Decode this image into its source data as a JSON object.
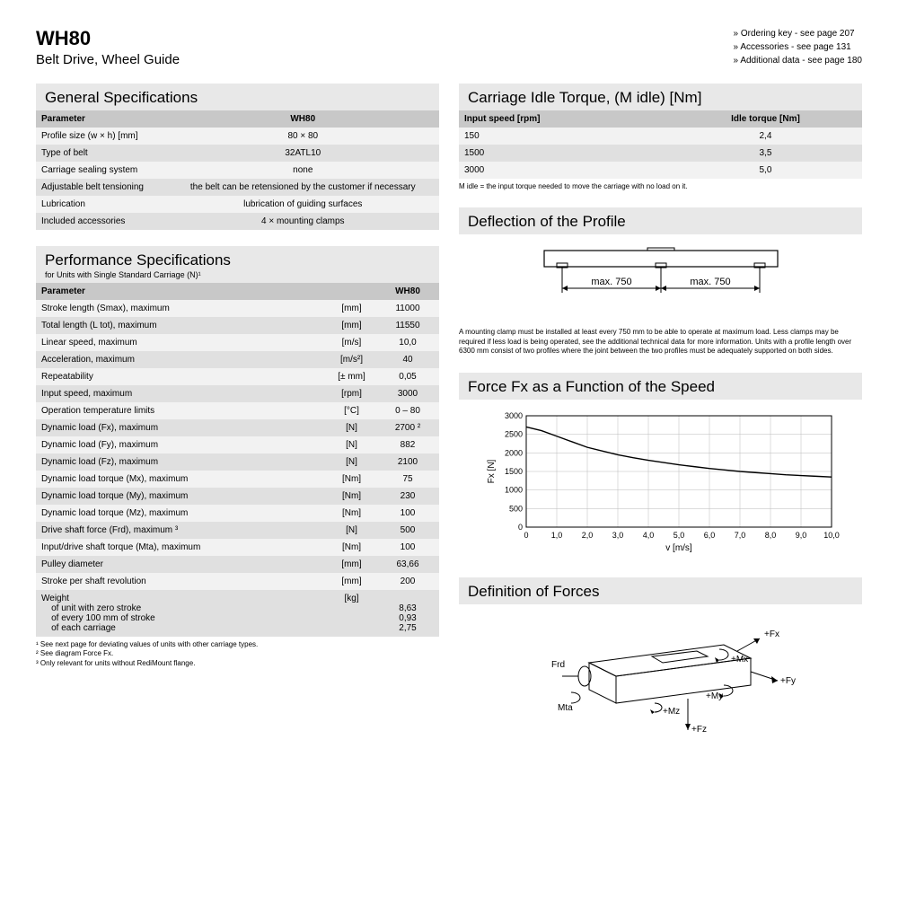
{
  "header": {
    "title": "WH80",
    "subtitle": "Belt Drive, Wheel Guide",
    "links": [
      "Ordering key - see page 207",
      "Accessories - see page 131",
      "Additional data - see page 180"
    ]
  },
  "general": {
    "title": "General Specifications",
    "hParam": "Parameter",
    "hVal": "WH80",
    "rows": [
      [
        "Profile size (w × h) [mm]",
        "80 × 80"
      ],
      [
        "Type of belt",
        "32ATL10"
      ],
      [
        "Carriage sealing system",
        "none"
      ],
      [
        "Adjustable belt tensioning",
        "the belt can be retensioned by the customer if necessary"
      ],
      [
        "Lubrication",
        "lubrication of guiding surfaces"
      ],
      [
        "Included accessories",
        "4 × mounting clamps"
      ]
    ]
  },
  "perf": {
    "title": "Performance Specifications",
    "subtitle": "for Units with Single Standard Carriage (N)¹",
    "hParam": "Parameter",
    "hVal": "WH80",
    "rows": [
      [
        "Stroke length (Smax), maximum",
        "[mm]",
        "11000"
      ],
      [
        "Total length (L tot), maximum",
        "[mm]",
        "11550"
      ],
      [
        "Linear speed, maximum",
        "[m/s]",
        "10,0"
      ],
      [
        "Acceleration, maximum",
        "[m/s²]",
        "40"
      ],
      [
        "Repeatability",
        "[± mm]",
        "0,05"
      ],
      [
        "Input speed, maximum",
        "[rpm]",
        "3000"
      ],
      [
        "Operation temperature limits",
        "[°C]",
        "0 – 80"
      ],
      [
        "Dynamic load (Fx), maximum",
        "[N]",
        "2700 ²"
      ],
      [
        "Dynamic load (Fy), maximum",
        "[N]",
        "882"
      ],
      [
        "Dynamic load (Fz), maximum",
        "[N]",
        "2100"
      ],
      [
        "Dynamic load torque (Mx), maximum",
        "[Nm]",
        "75"
      ],
      [
        "Dynamic load torque (My), maximum",
        "[Nm]",
        "230"
      ],
      [
        "Dynamic load torque (Mz), maximum",
        "[Nm]",
        "100"
      ],
      [
        "Drive shaft force (Frd), maximum ³",
        "[N]",
        "500"
      ],
      [
        "Input/drive shaft torque (Mta), maximum",
        "[Nm]",
        "100"
      ],
      [
        "Pulley diameter",
        "[mm]",
        "63,66"
      ],
      [
        "Stroke per shaft revolution",
        "[mm]",
        "200"
      ]
    ],
    "weight": {
      "label": "Weight",
      "unit": "[kg]",
      "sub": [
        [
          "of unit with zero stroke",
          "8,63"
        ],
        [
          "of every 100 mm of stroke",
          "0,93"
        ],
        [
          "of each carriage",
          "2,75"
        ]
      ]
    },
    "footnotes": [
      "¹ See next page for deviating values of units with other carriage types.",
      "² See diagram Force Fx.",
      "³ Only relevant for units without RediMount flange."
    ]
  },
  "idle": {
    "title": "Carriage Idle Torque, (M idle) [Nm]",
    "h1": "Input speed [rpm]",
    "h2": "Idle torque [Nm]",
    "rows": [
      [
        "150",
        "2,4"
      ],
      [
        "1500",
        "3,5"
      ],
      [
        "3000",
        "5,0"
      ]
    ],
    "note": "M idle = the input torque needed to move the carriage with no load on it."
  },
  "deflection": {
    "title": "Deflection of the Profile",
    "dim": "max. 750",
    "note": "A mounting clamp must be installed at least every 750 mm to be able to operate at maximum load. Less clamps may be required if less load is being operated, see the additional technical data for more information. Units with a profile length over 6300 mm consist of two profiles where the joint between the two profiles must be adequately supported on both sides."
  },
  "chart": {
    "title": "Force Fx as a Function of the Speed",
    "ylabel": "Fx [N]",
    "xlabel": "v [m/s]",
    "xlim": [
      0,
      10
    ],
    "ylim": [
      0,
      3000
    ],
    "ytick_step": 500,
    "xtick_step": 1,
    "xticks": [
      "0",
      "1,0",
      "2,0",
      "3,0",
      "4,0",
      "5,0",
      "6,0",
      "7,0",
      "8,0",
      "9,0",
      "10,0"
    ],
    "yticks": [
      "0",
      "500",
      "1000",
      "1500",
      "2000",
      "2500",
      "3000"
    ],
    "line_color": "#000000",
    "grid_color": "#bbbbbb",
    "background_color": "#ffffff",
    "data": [
      [
        0,
        2700
      ],
      [
        0.5,
        2600
      ],
      [
        1,
        2450
      ],
      [
        1.5,
        2300
      ],
      [
        2,
        2150
      ],
      [
        2.5,
        2050
      ],
      [
        3,
        1950
      ],
      [
        3.5,
        1870
      ],
      [
        4,
        1800
      ],
      [
        4.5,
        1740
      ],
      [
        5,
        1680
      ],
      [
        5.5,
        1630
      ],
      [
        6,
        1580
      ],
      [
        6.5,
        1540
      ],
      [
        7,
        1500
      ],
      [
        7.5,
        1470
      ],
      [
        8,
        1440
      ],
      [
        8.5,
        1410
      ],
      [
        9,
        1390
      ],
      [
        9.5,
        1370
      ],
      [
        10,
        1350
      ]
    ]
  },
  "forces": {
    "title": "Definition of Forces",
    "labels": {
      "fx": "+Fx",
      "fy": "+Fy",
      "fz": "+Fz",
      "mx": "+Mx",
      "my": "+My",
      "mz": "+Mz",
      "frd": "Frd",
      "mta": "Mta"
    }
  }
}
